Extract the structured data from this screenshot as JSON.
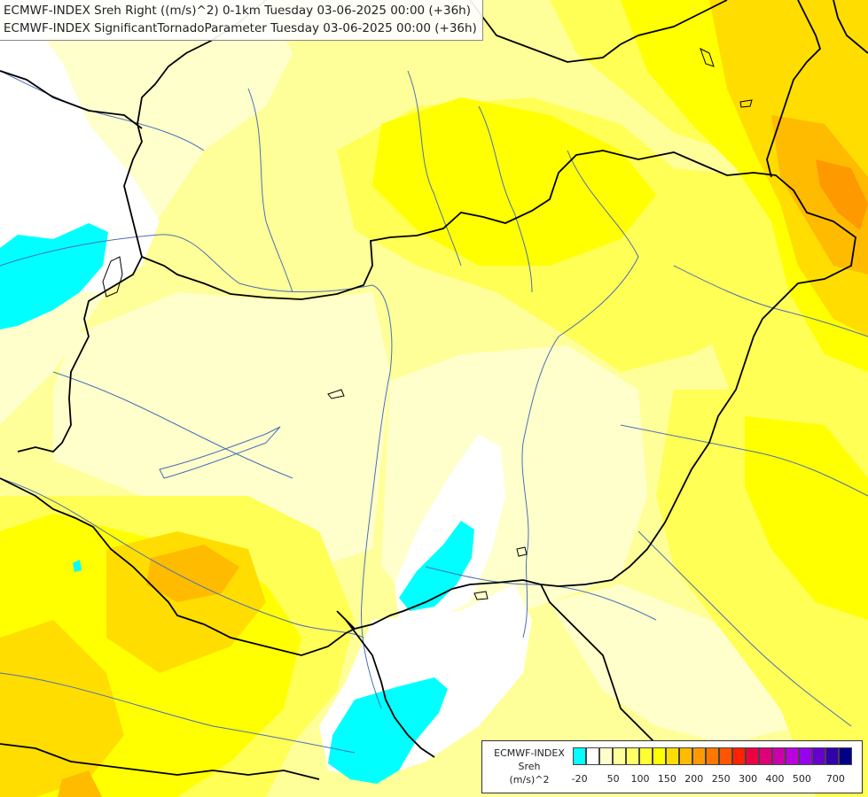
{
  "titles": {
    "line1": "ECMWF-INDEX Sreh Right ((m/s)^2) 0-1km Tuesday 03-06-2025 00:00 (+36h)",
    "line2": "ECMWF-INDEX SignificantTornadoParameter Tuesday 03-06-2025 00:00 (+36h)"
  },
  "legend": {
    "caption_line1": "ECMWF-INDEX",
    "caption_line2": "Sreh",
    "caption_line3": "(m/s)^2",
    "colors": [
      "#00ffff",
      "#ffffff",
      "#ffffcc",
      "#ffff99",
      "#ffff66",
      "#ffff33",
      "#ffff00",
      "#ffdd00",
      "#ffbb00",
      "#ff9900",
      "#ff7700",
      "#ff5500",
      "#ff2200",
      "#ee0044",
      "#dd0077",
      "#cc00aa",
      "#bb00dd",
      "#9900ee",
      "#6600cc",
      "#3300aa",
      "#000088"
    ],
    "tick_labels": [
      "-20",
      "50",
      "100",
      "150",
      "200",
      "250",
      "300",
      "400",
      "500",
      "700"
    ]
  },
  "map_colors": {
    "cyan": "#00ffff",
    "white": "#ffffff",
    "very_light_yellow": "#ffffcc",
    "light_yellow": "#ffff99",
    "yellow": "#ffff55",
    "bright_yellow": "#ffff00",
    "gold": "#ffdd00",
    "orange": "#ffbb00",
    "dark_orange": "#ff9900",
    "border_color": "#000000",
    "river_color": "#4a6fb5"
  }
}
